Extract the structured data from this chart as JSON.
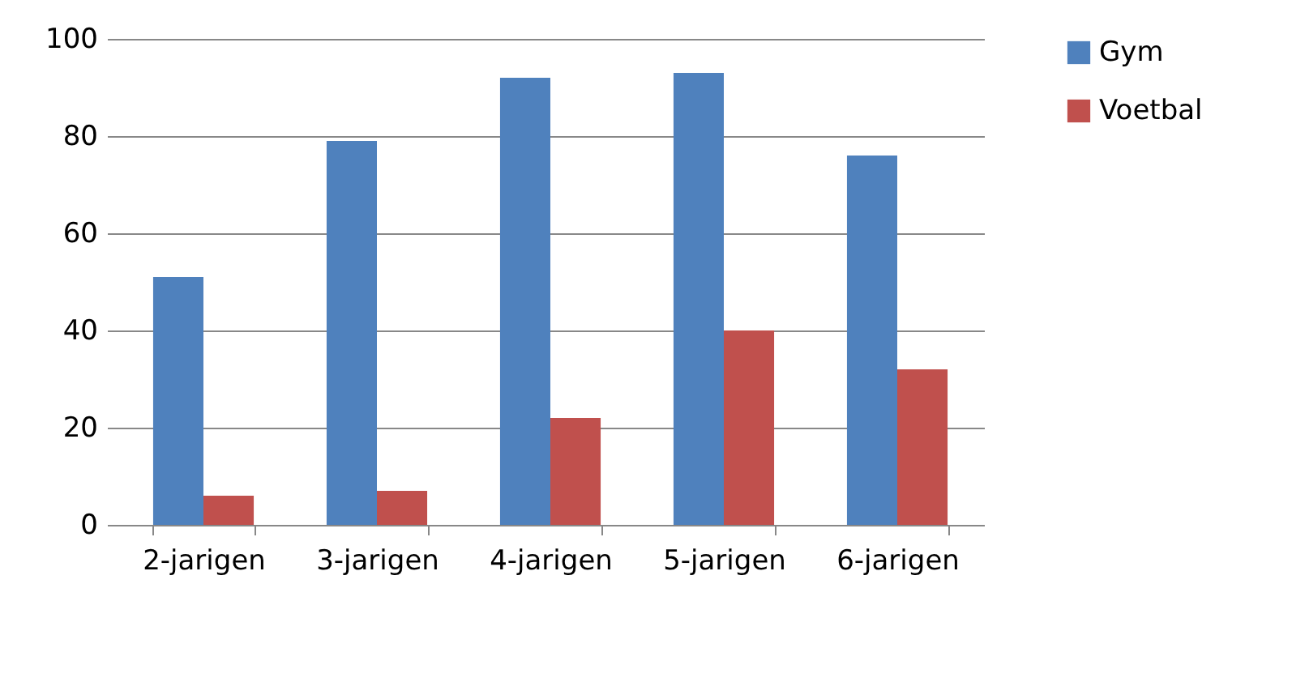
{
  "chart_data": {
    "type": "bar",
    "categories": [
      "2-jarigen",
      "3-jarigen",
      "4-jarigen",
      "5-jarigen",
      "6-jarigen"
    ],
    "series": [
      {
        "name": "Gym",
        "color": "#4f81bd",
        "values": [
          51,
          79,
          92,
          93,
          76
        ]
      },
      {
        "name": "Voetbal",
        "color": "#c0504d",
        "values": [
          6,
          7,
          22,
          40,
          32
        ]
      }
    ],
    "ylim": [
      0,
      100
    ],
    "yticks": [
      0,
      20,
      40,
      60,
      80,
      100
    ],
    "grid": "y",
    "legend": "right"
  }
}
